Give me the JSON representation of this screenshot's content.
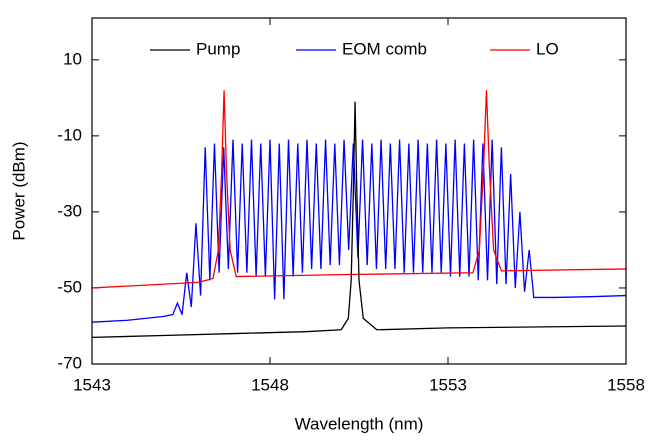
{
  "chart_data": {
    "type": "line",
    "x_label": "Wavelength (nm)",
    "y_label": "Power (dBm)",
    "xlim": [
      1543,
      1558
    ],
    "xticks": [
      1543,
      1548,
      1553,
      1558
    ],
    "ylim": [
      -70,
      21
    ],
    "yticks": [
      -70,
      -50,
      -30,
      -10,
      10
    ],
    "legend": "top",
    "series": [
      {
        "name": "Pump",
        "color": "#000000",
        "x": [
          1543,
          1545,
          1547,
          1549,
          1550,
          1550.2,
          1550.28,
          1550.34,
          1550.39,
          1550.44,
          1550.5,
          1550.62,
          1551,
          1553,
          1558
        ],
        "values": [
          -63,
          -62.5,
          -62,
          -61.5,
          -61,
          -58,
          -48,
          -25,
          -1,
          -25,
          -48,
          -58,
          -61,
          -60.5,
          -60
        ]
      },
      {
        "name": "EOM comb",
        "color": "#0000ff",
        "x": [
          1543,
          1544,
          1545,
          1545.27,
          1545.4,
          1545.53,
          1545.66,
          1545.79,
          1545.92,
          1546.05,
          1546.18,
          1546.31,
          1546.44,
          1546.57,
          1546.7,
          1546.83,
          1546.96,
          1547.09,
          1547.22,
          1547.35,
          1547.48,
          1547.61,
          1547.74,
          1547.87,
          1548.0,
          1548.13,
          1548.26,
          1548.39,
          1548.52,
          1548.65,
          1548.78,
          1548.91,
          1549.04,
          1549.17,
          1549.3,
          1549.43,
          1549.56,
          1549.69,
          1549.82,
          1549.95,
          1550.08,
          1550.21,
          1550.34,
          1550.47,
          1550.6,
          1550.73,
          1550.86,
          1550.99,
          1551.12,
          1551.25,
          1551.38,
          1551.51,
          1551.64,
          1551.77,
          1551.9,
          1552.03,
          1552.16,
          1552.29,
          1552.42,
          1552.55,
          1552.68,
          1552.81,
          1552.94,
          1553.07,
          1553.2,
          1553.33,
          1553.46,
          1553.59,
          1553.72,
          1553.85,
          1553.98,
          1554.11,
          1554.24,
          1554.37,
          1554.5,
          1554.63,
          1554.76,
          1554.89,
          1555.02,
          1555.15,
          1555.28,
          1555.41,
          1556,
          1557,
          1558
        ],
        "values": [
          -59,
          -58.5,
          -57.5,
          -57,
          -54,
          -57,
          -46,
          -55,
          -33,
          -52,
          -13,
          -48,
          -12,
          -46,
          -13,
          -45,
          -11,
          -46,
          -12,
          -46,
          -11,
          -47,
          -12,
          -47,
          -11,
          -53,
          -12,
          -53,
          -11,
          -47,
          -12,
          -46,
          -11,
          -45,
          -12,
          -45,
          -11,
          -44,
          -12,
          -44,
          -11,
          -40,
          -12,
          -42,
          -11,
          -44,
          -12,
          -45,
          -11,
          -45,
          -12,
          -45,
          -11,
          -46,
          -12,
          -46,
          -11,
          -46,
          -12,
          -46,
          -11,
          -46,
          -12,
          -47,
          -11,
          -47,
          -12,
          -47,
          -11,
          -48,
          -12,
          -48,
          -11,
          -49,
          -13,
          -49,
          -20,
          -50,
          -30,
          -51,
          -40,
          -52.5,
          -52.5,
          -52.3,
          -52
        ]
      },
      {
        "name": "LO",
        "color": "#ff0000",
        "x": [
          1543,
          1546,
          1546.4,
          1546.55,
          1546.64,
          1546.71,
          1546.78,
          1546.88,
          1547.05,
          1550,
          1553.7,
          1553.88,
          1554.0,
          1554.08,
          1554.16,
          1554.28,
          1554.5,
          1558
        ],
        "values": [
          -50,
          -48.5,
          -47.5,
          -40,
          -20,
          2,
          -20,
          -40,
          -47,
          -46.5,
          -46,
          -40,
          -18,
          2,
          -18,
          -40,
          -45.5,
          -45
        ]
      }
    ]
  }
}
